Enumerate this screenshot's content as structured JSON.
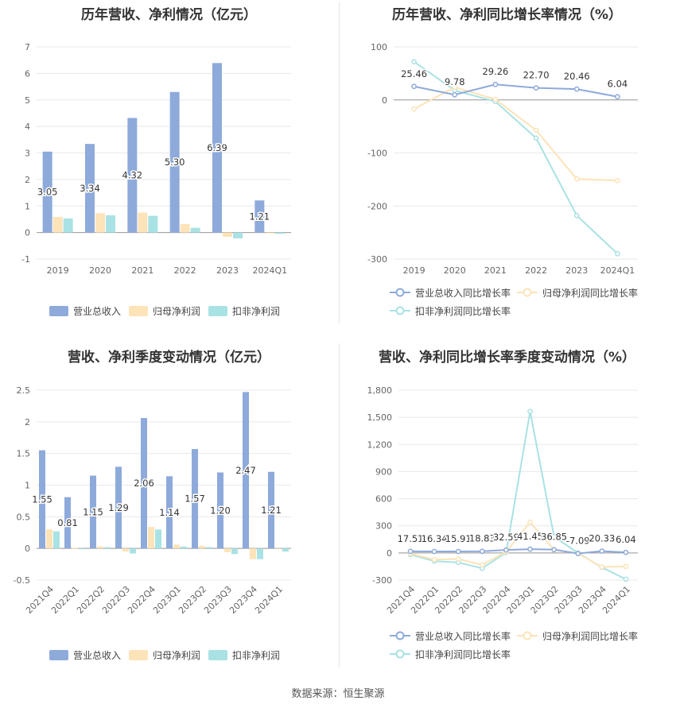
{
  "colors": {
    "revenue": "#8eaadb",
    "netProfit": "#fde3b8",
    "deducted": "#a9e2e4",
    "grid": "#e8e8e8",
    "axis": "#666666",
    "label": "#333333"
  },
  "footer": "数据来源：恒生聚源",
  "chart_data": [
    {
      "type": "bar",
      "title": "历年营收、净利情况（亿元）",
      "categories": [
        "2019",
        "2020",
        "2021",
        "2022",
        "2023",
        "2024Q1"
      ],
      "ylim": [
        -1,
        7
      ],
      "yticks": [
        -1,
        0,
        1,
        2,
        3,
        4,
        5,
        6,
        7
      ],
      "legend": "bottom",
      "grid": true,
      "series": [
        {
          "name": "营业总收入",
          "values": [
            3.05,
            3.34,
            4.32,
            5.3,
            6.39,
            1.21
          ],
          "labels": [
            "3.05",
            "3.34",
            "4.32",
            "5.30",
            "6.39",
            "1.21"
          ]
        },
        {
          "name": "归母净利润",
          "values": [
            0.59,
            0.73,
            0.75,
            0.32,
            -0.16,
            -0.01
          ]
        },
        {
          "name": "扣非净利润",
          "values": [
            0.53,
            0.65,
            0.63,
            0.18,
            -0.22,
            -0.05
          ]
        }
      ]
    },
    {
      "type": "line",
      "title": "历年营收、净利同比增长率情况（%）",
      "categories": [
        "2019",
        "2020",
        "2021",
        "2022",
        "2023",
        "2024Q1"
      ],
      "ylim": [
        -300,
        100
      ],
      "yticks": [
        -300,
        -200,
        -100,
        0,
        100
      ],
      "legend": "bottom",
      "grid": true,
      "series": [
        {
          "name": "营业总收入同比增长率",
          "values": [
            25.46,
            9.78,
            29.26,
            22.7,
            20.46,
            6.04
          ],
          "labels": [
            "25.46",
            "9.78",
            "29.26",
            "22.70",
            "20.46",
            "6.04"
          ]
        },
        {
          "name": "归母净利润同比增长率",
          "values": [
            -17,
            24,
            1,
            -57,
            -149,
            -152
          ]
        },
        {
          "name": "扣非净利润同比增长率",
          "values": [
            72,
            18,
            -3,
            -72,
            -218,
            -290
          ]
        }
      ]
    },
    {
      "type": "bar",
      "title": "营收、净利季度变动情况（亿元）",
      "categories": [
        "2021Q4",
        "2022Q1",
        "2022Q2",
        "2022Q3",
        "2022Q4",
        "2023Q1",
        "2023Q2",
        "2023Q3",
        "2023Q4",
        "2024Q1"
      ],
      "ylim": [
        -0.5,
        2.5
      ],
      "yticks": [
        -0.5,
        0,
        0.5,
        1,
        1.5,
        2,
        2.5
      ],
      "legend": "bottom",
      "grid": true,
      "series": [
        {
          "name": "营业总收入",
          "values": [
            1.55,
            0.81,
            1.15,
            1.29,
            2.06,
            1.14,
            1.57,
            1.2,
            2.47,
            1.21
          ],
          "labels": [
            "1.55",
            "0.81",
            "1.15",
            "1.29",
            "2.06",
            "1.14",
            "1.57",
            "1.20",
            "2.47",
            "1.21"
          ]
        },
        {
          "name": "归母净利润",
          "values": [
            0.3,
            0.01,
            0.03,
            -0.05,
            0.34,
            0.06,
            0.04,
            -0.06,
            -0.17,
            -0.01
          ]
        },
        {
          "name": "扣非净利润",
          "values": [
            0.27,
            -0.01,
            0.02,
            -0.08,
            0.3,
            0.03,
            0.02,
            -0.09,
            -0.17,
            -0.05
          ]
        }
      ]
    },
    {
      "type": "line",
      "title": "营收、净利同比增长率季度变动情况（%）",
      "categories": [
        "2021Q4",
        "2022Q1",
        "2022Q2",
        "2022Q3",
        "2022Q4",
        "2023Q1",
        "2023Q2",
        "2023Q3",
        "2023Q4",
        "2024Q1"
      ],
      "ylim": [
        -300,
        1800
      ],
      "yticks": [
        -300,
        0,
        300,
        600,
        900,
        1200,
        1500,
        1800
      ],
      "ytickLabels": [
        "-300",
        "0",
        "300",
        "600",
        "900",
        "1,200",
        "1,500",
        "1,800"
      ],
      "legend": "bottom",
      "grid": true,
      "series": [
        {
          "name": "营业总收入同比增长率",
          "values": [
            17.51,
            16.34,
            15.91,
            18.83,
            32.59,
            41.45,
            36.85,
            -7.09,
            20.33,
            6.04
          ],
          "labels": [
            "17.51",
            "16.34",
            "15.91",
            "18.83",
            "32.59",
            "41.45",
            "36.85",
            "-7.09",
            "20.33",
            "6.04"
          ]
        },
        {
          "name": "归母净利润同比增长率",
          "values": [
            -8,
            -74,
            -66,
            -133,
            12,
            340,
            34,
            -6,
            -155,
            -150
          ]
        },
        {
          "name": "扣非净利润同比增长率",
          "values": [
            -18,
            -90,
            -105,
            -170,
            5,
            1565,
            180,
            0,
            -160,
            -290
          ]
        }
      ]
    }
  ]
}
